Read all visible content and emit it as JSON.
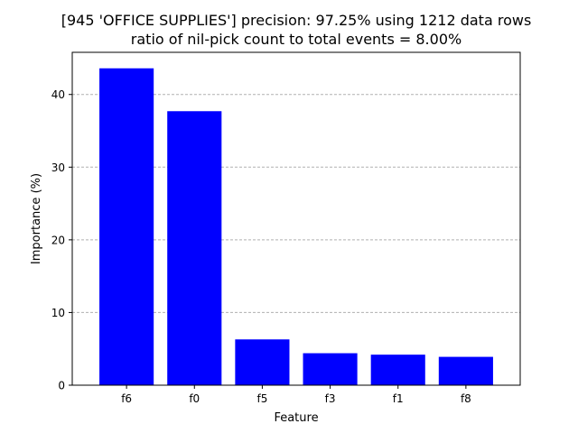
{
  "chart_data": {
    "type": "bar",
    "title": "[945 'OFFICE SUPPLIES'] precision: 97.25% using 1212 data rows",
    "subtitle": "ratio of nil-pick count to total events = 8.00%",
    "xlabel": "Feature",
    "ylabel": "Importance (%)",
    "categories": [
      "f6",
      "f0",
      "f5",
      "f3",
      "f1",
      "f8"
    ],
    "values": [
      43.6,
      37.7,
      6.3,
      4.4,
      4.2,
      3.9
    ],
    "ylim": [
      0,
      45.8
    ],
    "yticks": [
      0,
      10,
      20,
      30,
      40
    ],
    "grid": "y-dashed",
    "bar_color": "#0000ff",
    "grid_color": "#b0b0b0"
  }
}
